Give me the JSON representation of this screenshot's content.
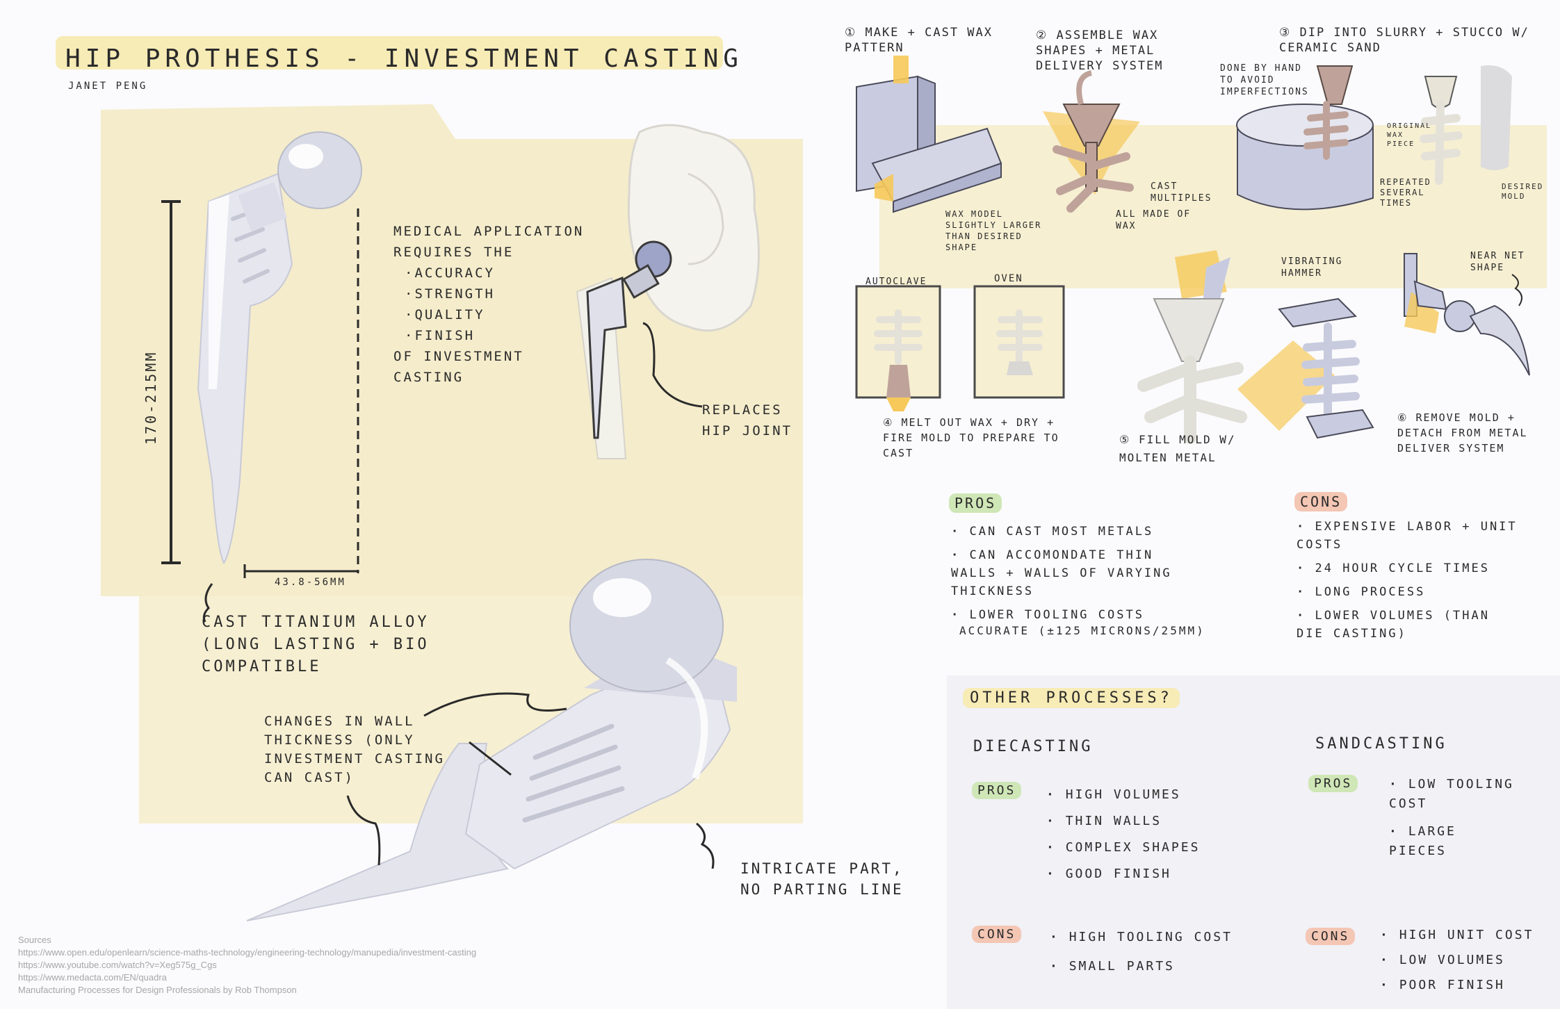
{
  "header": {
    "title": "HIP PROTHESIS - INVESTMENT CASTING",
    "author": "JANET PENG"
  },
  "left": {
    "dim_height": "170-215mm",
    "dim_width": "43.8-56mm",
    "medical_intro": "MEDICAL APPLICATION REQUIRES THE",
    "medical_bullets": [
      "ACCURACY",
      "STRENGTH",
      "QUALITY",
      "FINISH"
    ],
    "medical_outro": "OF INVESTMENT CASTING",
    "replaces": "REPLACES HIP JOINT",
    "material": "CAST TITANIUM ALLOY (LONG LASTING + BIO COMPATIBLE",
    "wall": "CHANGES IN WALL THICKNESS (ONLY INVESTMENT CASTING CAN CAST)",
    "intricate": "INTRICATE PART, NO PARTING LINE"
  },
  "steps": {
    "s1": "① MAKE + CAST WAX PATTERN",
    "s1_note": "WAX MODEL SLIGHTLY LARGER THAN DESIRED SHAPE",
    "s2": "② ASSEMBLE WAX SHAPES + METAL DELIVERY SYSTEM",
    "s2_note_a": "CAST MULTIPLES",
    "s2_note_b": "ALL MADE OF WAX",
    "s3": "③ DIP INTO SLURRY + STUCCO W/ CERAMIC SAND",
    "s3_note_a": "DONE BY HAND TO AVOID IMPERFECTIONS",
    "s3_note_b": "ORIGINAL WAX PIECE",
    "s3_note_c": "REPEATED SEVERAL TIMES",
    "s3_note_d": "DESIRED MOLD",
    "autoclave": "AUTOCLAVE",
    "oven": "OVEN",
    "s4": "④ MELT OUT WAX + DRY + FIRE MOLD TO PREPARE TO CAST",
    "s5": "⑤ FILL MOLD W/ MOLTEN METAL",
    "hammer": "VIBRATING HAMMER",
    "near_net": "NEAR NET SHAPE",
    "s6": "⑥ REMOVE MOLD + DETACH FROM METAL DELIVER SYSTEM"
  },
  "investment": {
    "pros_title": "PROS",
    "pros": [
      "CAN CAST MOST METALS",
      "CAN ACCOMONDATE THIN WALLS + WALLS OF VARYING THICKNESS",
      "LOWER TOOLING COSTS"
    ],
    "accuracy": "ACCURATE (±125 MICRONS/25mm)",
    "cons_title": "CONS",
    "cons": [
      "EXPENSIVE LABOR + UNIT COSTS",
      "24 HOUR CYCLE TIMES",
      "LONG PROCESS",
      "LOWER VOLUMES (THAN DIE CASTING)"
    ]
  },
  "other": {
    "title": "OTHER PROCESSES?",
    "die": {
      "title": "DIECASTING",
      "pros_label": "PROS",
      "pros": [
        "HIGH VOLUMES",
        "THIN WALLS",
        "COMPLEX SHAPES",
        "GOOD FINISH"
      ],
      "cons_label": "CONS",
      "cons": [
        "HIGH TOOLING COST",
        "SMALL PARTS"
      ]
    },
    "sand": {
      "title": "SANDCASTING",
      "pros_label": "PROS",
      "pros": [
        "LOW TOOLING COST",
        "LARGE PIECES"
      ],
      "cons_label": "CONS",
      "cons": [
        "HIGH UNIT COST",
        "LOW VOLUMES",
        "POOR FINISH"
      ]
    }
  },
  "sources": {
    "label": "Sources",
    "links": [
      "https://www.open.edu/openlearn/science-maths-technology/engineering-technology/manupedia/investment-casting",
      "https://www.youtube.com/watch?v=Xeg575g_Cgs",
      "https://www.medacta.com/EN/quadra",
      "Manufacturing Processes for Design Professionals by Rob Thompson"
    ]
  },
  "colors": {
    "panel_yellow": "#f6efd2",
    "accent_yellow": "#f6c95a",
    "wax_brown": "#bfa39a",
    "metal_gray": "#dfe0ea",
    "mold_blue": "#c9cce0"
  }
}
